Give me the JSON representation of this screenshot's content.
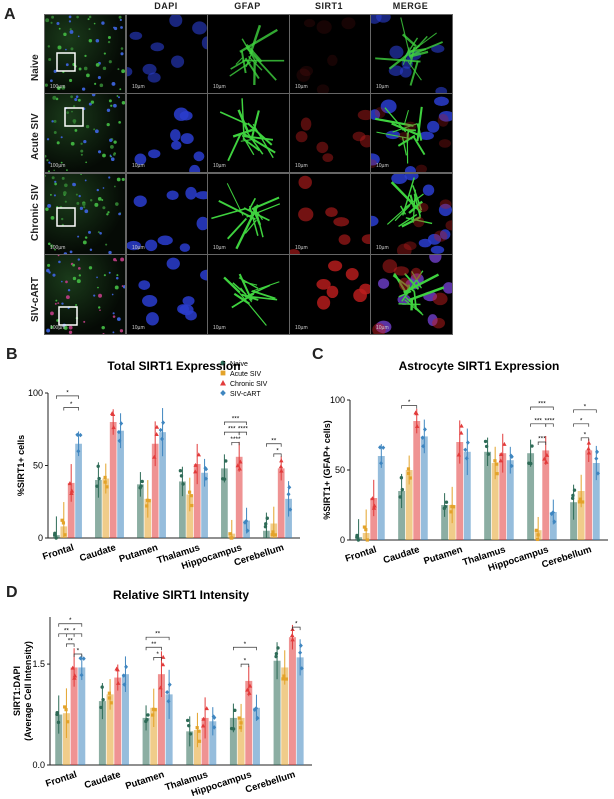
{
  "panel_A": {
    "letter": "A",
    "columns": [
      "DAPI",
      "GFAP",
      "SIRT1",
      "MERGE"
    ],
    "rows": [
      "Naive",
      "Acute SIV",
      "Chronic SIV",
      "SIV-cART"
    ],
    "scale_overview": "100µm",
    "scale_zoom": "10µm"
  },
  "legend": {
    "items": [
      {
        "name": "Naive",
        "color": "#2e6b57"
      },
      {
        "name": "Acute SIV",
        "color": "#e3a32a"
      },
      {
        "name": "Chronic SIV",
        "color": "#e23b3b"
      },
      {
        "name": "SIV-cART",
        "color": "#3f86c0"
      }
    ]
  },
  "chart_data": [
    {
      "panel": "B",
      "type": "bar",
      "title": "Total SIRT1 Expression",
      "ylabel": "%SIRT1+ cells",
      "ylim": [
        0,
        100
      ],
      "yticks": [
        "0",
        "50",
        "100"
      ],
      "categories": [
        "Frontal",
        "Caudate",
        "Putamen",
        "Thalamus",
        "Hippocampus",
        "Cerebellum"
      ],
      "series": [
        {
          "name": "Naive",
          "values": [
            2,
            40,
            37,
            39,
            48,
            5
          ]
        },
        {
          "name": "Acute SIV",
          "values": [
            8,
            41,
            27,
            30,
            3,
            10
          ]
        },
        {
          "name": "Chronic SIV",
          "values": [
            38,
            80,
            65,
            51,
            56,
            48
          ]
        },
        {
          "name": "SIV-cART",
          "values": [
            65,
            74,
            73,
            45,
            12,
            27
          ]
        }
      ],
      "significance": [
        "*",
        "*",
        "***",
        "***",
        "****",
        "****",
        "**",
        "*"
      ]
    },
    {
      "panel": "C",
      "type": "bar",
      "title": "Astrocyte SIRT1 Expression",
      "ylabel": "%SIRT1+ (GFAP+ cells)",
      "ylim": [
        0,
        100
      ],
      "yticks": [
        "0",
        "50",
        "100"
      ],
      "categories": [
        "Frontal",
        "Caudate",
        "Putamen",
        "Thalamus",
        "Hippocampus",
        "Cerebellum"
      ],
      "series": [
        {
          "name": "Naive",
          "values": [
            2,
            35,
            25,
            63,
            62,
            27
          ]
        },
        {
          "name": "Acute SIV",
          "values": [
            5,
            50,
            25,
            55,
            7,
            35
          ]
        },
        {
          "name": "Chronic SIV",
          "values": [
            30,
            85,
            70,
            62,
            64,
            64
          ]
        },
        {
          "name": "SIV-cART",
          "values": [
            60,
            74,
            63,
            57,
            20,
            55
          ]
        }
      ],
      "significance": [
        "*",
        "***",
        "***",
        "****",
        "***",
        "*",
        "*",
        "*"
      ]
    },
    {
      "panel": "D",
      "type": "bar",
      "title": "Relative SIRT1 Intensity",
      "ylabel": "SIRT1:DAPI",
      "ylabel2": "(Average Cell Intensity)",
      "ylim": [
        0,
        2.2
      ],
      "yticks": [
        "0.0",
        "1.5"
      ],
      "categories": [
        "Frontal",
        "Caudate",
        "Putamen",
        "Thalamus",
        "Hippocampus",
        "Cerebellum"
      ],
      "series": [
        {
          "name": "Naive",
          "values": [
            0.75,
            0.95,
            0.7,
            0.5,
            0.7,
            1.55
          ]
        },
        {
          "name": "Acute SIV",
          "values": [
            0.77,
            1.05,
            0.85,
            0.52,
            0.7,
            1.45
          ]
        },
        {
          "name": "Chronic SIV",
          "values": [
            1.45,
            1.3,
            1.35,
            0.7,
            1.25,
            1.9
          ]
        },
        {
          "name": "SIV-cART",
          "values": [
            1.45,
            1.35,
            1.05,
            0.65,
            0.85,
            1.6
          ]
        }
      ],
      "significance": [
        "*",
        "**",
        "*",
        "**",
        "*",
        "**",
        "**",
        "*",
        "*",
        "*",
        "*"
      ]
    }
  ]
}
